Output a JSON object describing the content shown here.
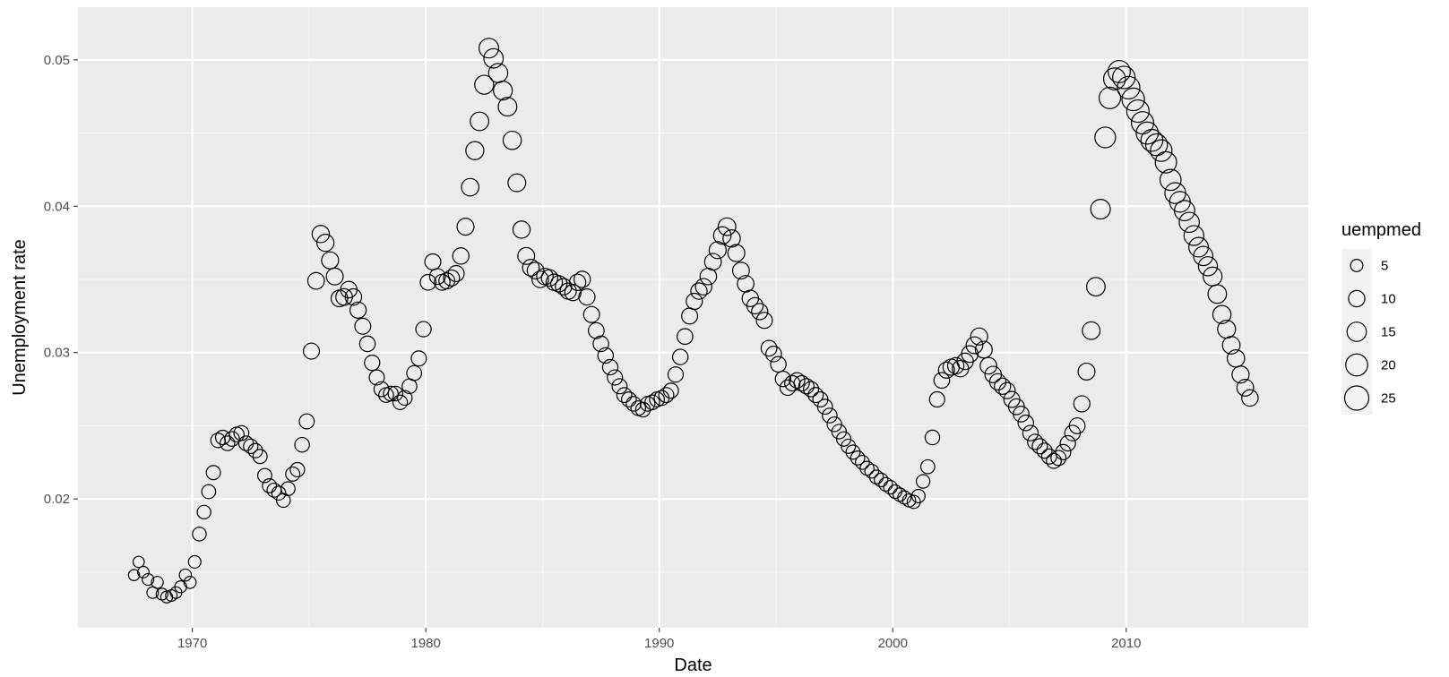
{
  "chart_data": {
    "type": "scatter",
    "xlabel": "Date",
    "ylabel": "Unemployment rate",
    "xlim": [
      1965.1,
      2017.8
    ],
    "ylim": [
      0.0112,
      0.0536
    ],
    "xticks": [
      1970,
      1980,
      1990,
      2000,
      2010
    ],
    "xtick_labels": [
      "1970",
      "1980",
      "1990",
      "2000",
      "2010"
    ],
    "yticks": [
      0.02,
      0.03,
      0.04,
      0.05
    ],
    "ytick_labels": [
      "0.02",
      "0.03",
      "0.04",
      "0.05"
    ],
    "grid": true,
    "legend": {
      "title": "uempmed",
      "position": "right",
      "sizes": [
        5,
        10,
        15,
        20,
        25
      ],
      "labels": [
        "5",
        "10",
        "15",
        "20",
        "25"
      ]
    },
    "colors": {
      "panel_background": "#ebebeb",
      "grid_major": "#ffffff",
      "grid_minor": "#f5f5f5",
      "point_stroke": "#000000",
      "tick_text": "#4d4d4d"
    },
    "series": [
      {
        "x": [
          1967.5,
          1967.7,
          1967.9,
          1968.1,
          1968.3,
          1968.5,
          1968.7,
          1968.9,
          1969.1,
          1969.3,
          1969.5,
          1969.7,
          1969.9,
          1970.1,
          1970.3,
          1970.5,
          1970.7,
          1970.9,
          1971.1,
          1971.3,
          1971.5,
          1971.7,
          1971.9,
          1972.1,
          1972.3,
          1972.5,
          1972.7,
          1972.9,
          1973.1,
          1973.3,
          1973.5,
          1973.7,
          1973.9,
          1974.1,
          1974.3,
          1974.5,
          1974.7,
          1974.9,
          1975.1,
          1975.3,
          1975.5,
          1975.7,
          1975.9,
          1976.1,
          1976.3,
          1976.5,
          1976.7,
          1976.9,
          1977.1,
          1977.3,
          1977.5,
          1977.7,
          1977.9,
          1978.1,
          1978.3,
          1978.5,
          1978.7,
          1978.9,
          1979.1,
          1979.3,
          1979.5,
          1979.7,
          1979.9,
          1980.1,
          1980.3,
          1980.5,
          1980.7,
          1980.9,
          1981.1,
          1981.3,
          1981.5,
          1981.7,
          1981.9,
          1982.1,
          1982.3,
          1982.5,
          1982.7,
          1982.9,
          1983.1,
          1983.3,
          1983.5,
          1983.7,
          1983.9,
          1984.1,
          1984.3,
          1984.5,
          1984.7,
          1984.9,
          1985.1,
          1985.3,
          1985.5,
          1985.7,
          1985.9,
          1986.1,
          1986.3,
          1986.5,
          1986.7,
          1986.9,
          1987.1,
          1987.3,
          1987.5,
          1987.7,
          1987.9,
          1988.1,
          1988.3,
          1988.5,
          1988.7,
          1988.9,
          1989.1,
          1989.3,
          1989.5,
          1989.7,
          1989.9,
          1990.1,
          1990.3,
          1990.5,
          1990.7,
          1990.9,
          1991.1,
          1991.3,
          1991.5,
          1991.7,
          1991.9,
          1992.1,
          1992.3,
          1992.5,
          1992.7,
          1992.9,
          1993.1,
          1993.3,
          1993.5,
          1993.7,
          1993.9,
          1994.1,
          1994.3,
          1994.5,
          1994.7,
          1994.9,
          1995.1,
          1995.3,
          1995.5,
          1995.7,
          1995.9,
          1996.1,
          1996.3,
          1996.5,
          1996.7,
          1996.9,
          1997.1,
          1997.3,
          1997.5,
          1997.7,
          1997.9,
          1998.1,
          1998.3,
          1998.5,
          1998.7,
          1998.9,
          1999.1,
          1999.3,
          1999.5,
          1999.7,
          1999.9,
          2000.1,
          2000.3,
          2000.5,
          2000.7,
          2000.9,
          2001.1,
          2001.3,
          2001.5,
          2001.7,
          2001.9,
          2002.1,
          2002.3,
          2002.5,
          2002.7,
          2002.9,
          2003.1,
          2003.3,
          2003.5,
          2003.7,
          2003.9,
          2004.1,
          2004.3,
          2004.5,
          2004.7,
          2004.9,
          2005.1,
          2005.3,
          2005.5,
          2005.7,
          2005.9,
          2006.1,
          2006.3,
          2006.5,
          2006.7,
          2006.9,
          2007.1,
          2007.3,
          2007.5,
          2007.7,
          2007.9,
          2008.1,
          2008.3,
          2008.5,
          2008.7,
          2008.9,
          2009.1,
          2009.3,
          2009.5,
          2009.7,
          2009.9,
          2010.1,
          2010.3,
          2010.5,
          2010.7,
          2010.9,
          2011.1,
          2011.3,
          2011.5,
          2011.7,
          2011.9,
          2012.1,
          2012.3,
          2012.5,
          2012.7,
          2012.9,
          2013.1,
          2013.3,
          2013.5,
          2013.7,
          2013.9,
          2014.1,
          2014.3,
          2014.5,
          2014.7,
          2014.9,
          2015.1,
          2015.3
        ],
        "y": [
          0.0148,
          0.0157,
          0.015,
          0.0145,
          0.0136,
          0.0143,
          0.0135,
          0.0133,
          0.0134,
          0.0136,
          0.014,
          0.0148,
          0.0143,
          0.0157,
          0.0176,
          0.0191,
          0.0205,
          0.0218,
          0.024,
          0.0242,
          0.0238,
          0.0241,
          0.0244,
          0.0245,
          0.0238,
          0.0236,
          0.0233,
          0.0229,
          0.0216,
          0.0209,
          0.0206,
          0.0204,
          0.0199,
          0.0207,
          0.0217,
          0.022,
          0.0237,
          0.0253,
          0.0301,
          0.0349,
          0.0381,
          0.0375,
          0.0363,
          0.0352,
          0.0337,
          0.0338,
          0.0343,
          0.0338,
          0.0329,
          0.0318,
          0.0306,
          0.0293,
          0.0283,
          0.0275,
          0.0271,
          0.0272,
          0.0272,
          0.0266,
          0.0269,
          0.0277,
          0.0286,
          0.0296,
          0.0316,
          0.0348,
          0.0362,
          0.0352,
          0.0348,
          0.0349,
          0.0351,
          0.0354,
          0.0366,
          0.0386,
          0.0413,
          0.0438,
          0.0458,
          0.0483,
          0.0508,
          0.0501,
          0.0491,
          0.0479,
          0.0468,
          0.0445,
          0.0416,
          0.0384,
          0.0366,
          0.0358,
          0.0356,
          0.035,
          0.0352,
          0.0351,
          0.0348,
          0.0347,
          0.0345,
          0.0342,
          0.0341,
          0.0348,
          0.035,
          0.0338,
          0.0326,
          0.0315,
          0.0306,
          0.0298,
          0.029,
          0.0283,
          0.0277,
          0.0271,
          0.0268,
          0.0265,
          0.0262,
          0.0261,
          0.0265,
          0.0266,
          0.0268,
          0.0269,
          0.0271,
          0.0274,
          0.0285,
          0.0297,
          0.0311,
          0.0325,
          0.0335,
          0.0342,
          0.0345,
          0.0352,
          0.0362,
          0.037,
          0.038,
          0.0386,
          0.0378,
          0.0368,
          0.0356,
          0.0347,
          0.0337,
          0.0332,
          0.0328,
          0.0322,
          0.0303,
          0.0299,
          0.0292,
          0.0282,
          0.0276,
          0.0279,
          0.0281,
          0.0279,
          0.0277,
          0.0275,
          0.0271,
          0.0268,
          0.0263,
          0.0257,
          0.0251,
          0.0246,
          0.0241,
          0.0236,
          0.0232,
          0.0228,
          0.0225,
          0.0221,
          0.0219,
          0.0215,
          0.0213,
          0.021,
          0.0208,
          0.0205,
          0.0203,
          0.0201,
          0.0199,
          0.0198,
          0.0202,
          0.0212,
          0.0222,
          0.0242,
          0.0268,
          0.0281,
          0.0288,
          0.029,
          0.0291,
          0.0289,
          0.0294,
          0.0299,
          0.0305,
          0.0311,
          0.0302,
          0.0291,
          0.0285,
          0.028,
          0.0277,
          0.0274,
          0.0268,
          0.0263,
          0.0258,
          0.0252,
          0.0245,
          0.0239,
          0.0236,
          0.0233,
          0.0229,
          0.0226,
          0.0228,
          0.0232,
          0.0238,
          0.0245,
          0.025,
          0.0265,
          0.0287,
          0.0315,
          0.0345,
          0.0398,
          0.0447,
          0.0474,
          0.0487,
          0.0492,
          0.0488,
          0.0481,
          0.0473,
          0.0465,
          0.0457,
          0.045,
          0.0445,
          0.0442,
          0.0438,
          0.043,
          0.0418,
          0.0409,
          0.0403,
          0.0397,
          0.0389,
          0.038,
          0.0372,
          0.0366,
          0.0359,
          0.0352,
          0.034,
          0.0326,
          0.0316,
          0.0305,
          0.0296,
          0.0285,
          0.0276,
          0.0269
        ],
        "size": [
          3.8,
          3.9,
          4.1,
          4.3,
          4.2,
          4.6,
          4.4,
          4.5,
          4.2,
          4.3,
          4.5,
          4.7,
          4.8,
          5.2,
          6.5,
          6.4,
          6.8,
          7.1,
          7.5,
          7.4,
          7.6,
          7.8,
          7.9,
          8.0,
          7.6,
          7.4,
          7.3,
          7.1,
          7.0,
          6.9,
          6.9,
          6.8,
          6.7,
          6.8,
          7.1,
          7.3,
          7.7,
          8.1,
          9.5,
          10.5,
          11.4,
          11.2,
          11.0,
          10.8,
          10.5,
          10.4,
          10.3,
          10.1,
          9.8,
          9.5,
          9.0,
          8.6,
          8.3,
          8.0,
          7.8,
          7.8,
          7.7,
          7.5,
          7.6,
          7.8,
          8.0,
          8.3,
          8.6,
          9.2,
          9.5,
          9.3,
          9.3,
          9.4,
          9.5,
          9.6,
          10.0,
          10.9,
          11.8,
          12.7,
          13.5,
          14.3,
          15.5,
          15.0,
          14.6,
          14.1,
          13.7,
          13.0,
          12.2,
          11.3,
          10.8,
          10.6,
          10.5,
          10.3,
          10.3,
          10.2,
          10.1,
          10.0,
          10.0,
          9.9,
          9.9,
          10.0,
          10.0,
          9.8,
          9.5,
          9.2,
          9.0,
          8.8,
          8.6,
          8.4,
          8.2,
          8.0,
          7.9,
          7.8,
          7.7,
          7.6,
          7.7,
          7.8,
          7.9,
          8.0,
          8.1,
          8.2,
          8.5,
          8.8,
          9.1,
          9.5,
          9.8,
          10.0,
          10.1,
          10.3,
          10.6,
          11.0,
          11.7,
          12.0,
          11.5,
          11.0,
          10.7,
          10.4,
          10.1,
          9.9,
          9.8,
          9.6,
          9.2,
          9.0,
          8.9,
          8.7,
          8.6,
          8.6,
          8.7,
          8.6,
          8.5,
          8.4,
          8.3,
          8.2,
          8.0,
          7.8,
          7.6,
          7.5,
          7.3,
          7.1,
          7.0,
          6.9,
          6.8,
          6.7,
          6.6,
          6.5,
          6.4,
          6.3,
          6.3,
          6.2,
          6.1,
          6.0,
          5.9,
          5.9,
          6.1,
          6.4,
          6.8,
          7.6,
          8.5,
          9.1,
          9.6,
          9.8,
          10.0,
          10.0,
          10.2,
          10.4,
          10.7,
          11.0,
          10.8,
          10.4,
          10.2,
          10.0,
          9.8,
          9.7,
          9.5,
          9.3,
          9.1,
          8.9,
          8.7,
          8.5,
          8.4,
          8.3,
          8.2,
          8.1,
          8.2,
          8.4,
          8.6,
          8.9,
          9.2,
          9.8,
          10.8,
          12.1,
          13.5,
          15.5,
          17.5,
          19.0,
          19.9,
          20.5,
          21.0,
          21.3,
          21.3,
          21.0,
          20.7,
          20.3,
          19.9,
          19.6,
          19.2,
          18.7,
          18.2,
          17.7,
          17.3,
          16.8,
          16.3,
          15.8,
          15.3,
          14.9,
          14.4,
          14.0,
          13.5,
          12.9,
          12.5,
          12.0,
          11.6,
          11.1,
          10.6,
          10.2
        ]
      }
    ]
  }
}
